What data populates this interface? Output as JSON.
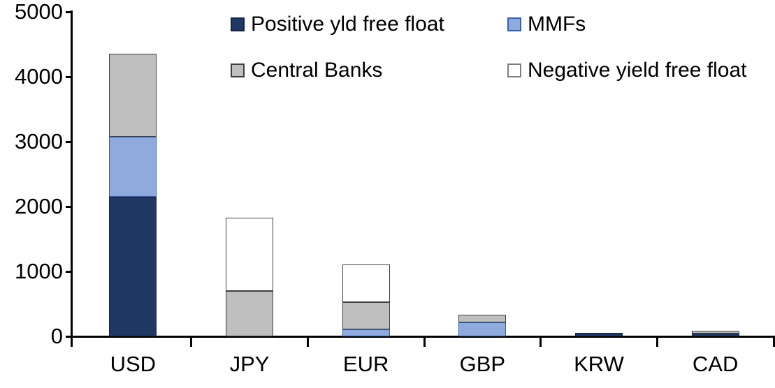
{
  "page": {
    "background": "#FFFFFF",
    "axis_color": "#000000",
    "text_color": "#000000"
  },
  "chart_data": {
    "type": "bar",
    "stacked": true,
    "title": "",
    "xlabel": "",
    "ylabel": "",
    "categories": [
      "USD",
      "JPY",
      "EUR",
      "GBP",
      "KRW",
      "CAD"
    ],
    "series": [
      {
        "name": "Positive yld free float",
        "fill": "#1F3864",
        "border": "#16243F",
        "values": [
          2150,
          0,
          0,
          0,
          50,
          45
        ]
      },
      {
        "name": "MMFs",
        "fill": "#8FAADC",
        "border": "#3B5EA8",
        "values": [
          920,
          0,
          110,
          220,
          0,
          0
        ]
      },
      {
        "name": "Central Banks",
        "fill": "#BFBFBF",
        "border": "#404040",
        "values": [
          1280,
          700,
          420,
          110,
          0,
          40
        ]
      },
      {
        "name": "Negative yield free float",
        "fill": "#FFFFFF",
        "border": "#404040",
        "swatch_border": "#7F7F7F",
        "values": [
          0,
          1130,
          580,
          0,
          0,
          0
        ]
      }
    ],
    "ylim": [
      0,
      5000
    ],
    "yticks": [
      0,
      1000,
      2000,
      3000,
      4000,
      5000
    ],
    "grid": false,
    "legend_position": "top-inside-two-columns"
  }
}
